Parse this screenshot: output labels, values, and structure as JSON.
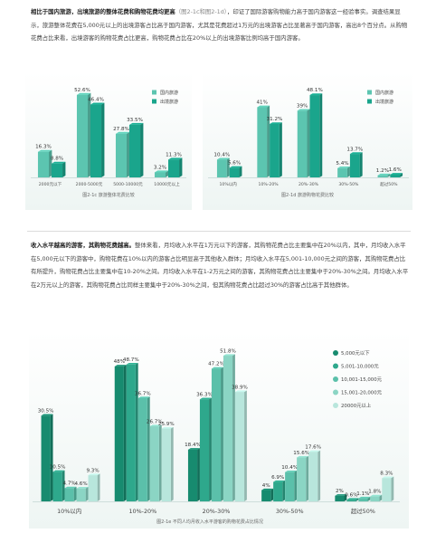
{
  "intro": {
    "bold": "相比于国内旅游，出境旅游的整体花费和购物花费均更高",
    "ref": "（图2-1c和图2-1d）",
    "body": "，印证了国际游客购物能力高于国内游客这一经验事实。调查结果显示，旅游整体花费在5,000元以上的出境游客占比高于国内游客，尤其是花费超过1万元的出境游客占比显著高于国内游客，高出8个百分点。从购物花费占比来看，出境游客的购物花费占比更高，购物花费占比在20%以上的出境游客比例均高于国内游客。"
  },
  "income_para": {
    "bold": "收入水平越高的游客，其购物花费越高。",
    "body": "整体来看，月均收入水平在1万元以下的游客，其购物花费占比主要集中在20%以内，其中，月均收入水平在5,000元以下的游客中，购物花费在10%以内的游客占比明显高于其他收入群体；月均收入水平在5,001-10,000元之间的游客，其购物花费占比有所提升，购物花费占比主要集中在10-20%之间。月均收入水平在1-2万元之间的游客，其购物花费占比主要集中于20%-30%之间。月均收入水平在2万元以上的游客，其购物花费占比同样主要集中于20%-30%之间，但其购物花费占比超过30%的游客占比高于其他群体。"
  },
  "chart_data": [
    {
      "type": "bar",
      "caption": "图2-1c 旅游整体花费比较",
      "categories": [
        "2000元以下",
        "2000-5000元",
        "5000-10000元",
        "10000元以上"
      ],
      "series": [
        {
          "name": "国内旅游",
          "values": [
            16.3,
            52.6,
            27.8,
            3.2
          ],
          "labels": [
            "16.3%",
            "52.6%",
            "27.8%",
            "3.2%"
          ],
          "color": "#5cc5b0"
        },
        {
          "name": "出境旅游",
          "values": [
            8.8,
            46.4,
            33.5,
            11.3
          ],
          "labels": [
            "8.8%",
            "46.4%",
            "33.5%",
            "11.3%"
          ],
          "color": "#1aa58c"
        }
      ],
      "ylim": [
        0,
        60
      ],
      "legend": "top-right"
    },
    {
      "type": "bar",
      "caption": "图2-1d 旅游购物花费比较",
      "categories": [
        "10%以内",
        "10%-20%",
        "20%-30%",
        "30%-50%",
        "超过50%"
      ],
      "series": [
        {
          "name": "国内旅游",
          "values": [
            10.4,
            41,
            39,
            5.4,
            1.2
          ],
          "labels": [
            "10.4%",
            "41%",
            "39%",
            "5.4%",
            "1.2%"
          ],
          "color": "#5cc5b0"
        },
        {
          "name": "出境旅游",
          "values": [
            5.6,
            31.2,
            48.1,
            13.7,
            1.6
          ],
          "labels": [
            "5.6%",
            "31.2%",
            "48.1%",
            "13.7%",
            "1.6%"
          ],
          "color": "#1aa58c"
        }
      ],
      "ylim": [
        0,
        55
      ],
      "legend": "top-right"
    },
    {
      "type": "bar",
      "caption": "图2-1e 不同人均月收入水平游客的购物花费占比情况",
      "categories": [
        "10%以内",
        "10%-20%",
        "20%-30%",
        "30%-50%",
        "超过50%"
      ],
      "series": [
        {
          "name": "5,000元以下",
          "values": [
            30.5,
            48,
            18.4,
            4,
            2
          ],
          "labels": [
            "30.5%",
            "48%",
            "18.4%",
            "4%",
            "2%"
          ],
          "color": "#178b6f"
        },
        {
          "name": "5,001-10,000元",
          "values": [
            10.5,
            48.7,
            36.3,
            6.9,
            0.6
          ],
          "labels": [
            "10.5%",
            "48.7%",
            "36.3%",
            "6.9%",
            "0.6%"
          ],
          "color": "#2ea88c"
        },
        {
          "name": "10,001-15,000元",
          "values": [
            4.7,
            36.7,
            47.2,
            10.4,
            1.1
          ],
          "labels": [
            "4.7%",
            "36.7%",
            "47.2%",
            "10.4%",
            "1.1%"
          ],
          "color": "#5bc0aa"
        },
        {
          "name": "15,001-20,000元",
          "values": [
            4.6,
            26.7,
            51.8,
            15.6,
            1.8
          ],
          "labels": [
            "4.6%",
            "26.7%",
            "51.8%",
            "15.6%",
            "1.8%"
          ],
          "color": "#8bd5c4"
        },
        {
          "name": "20000元以上",
          "values": [
            9.3,
            25.9,
            38.9,
            17.6,
            8.3
          ],
          "labels": [
            "9.3%",
            "25.9%",
            "38.9%",
            "17.6%",
            "8.3%"
          ],
          "color": "#b8e6dc"
        }
      ],
      "ylim": [
        0,
        56
      ],
      "legend": "right"
    }
  ]
}
